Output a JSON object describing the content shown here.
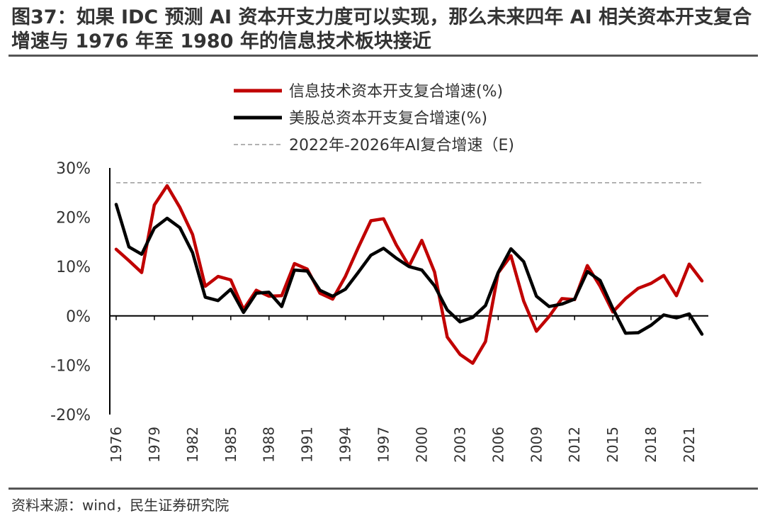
{
  "title": "图37：如果 IDC 预测 AI 资本开支力度可以实现，那么未来四年 AI 相关资本开支复合增速与 1976 年至 1980 年的信息技术板块接近",
  "source": "资料来源：wind，民生证券研究院",
  "colors": {
    "red": "#c00000",
    "black": "#000000",
    "dashed": "#999999"
  },
  "chart_data": {
    "type": "line",
    "title": "",
    "xlabel": "",
    "ylabel": "",
    "ylim": [
      -20,
      30
    ],
    "yticks": [
      -20,
      -10,
      0,
      10,
      20,
      30
    ],
    "ytick_labels": [
      "-20%",
      "-10%",
      "0%",
      "10%",
      "20%",
      "30%"
    ],
    "x": [
      1976,
      1977,
      1978,
      1979,
      1980,
      1981,
      1982,
      1983,
      1984,
      1985,
      1986,
      1987,
      1988,
      1989,
      1990,
      1991,
      1992,
      1993,
      1994,
      1995,
      1996,
      1997,
      1998,
      1999,
      2000,
      2001,
      2002,
      2003,
      2004,
      2005,
      2006,
      2007,
      2008,
      2009,
      2010,
      2011,
      2012,
      2013,
      2014,
      2015,
      2016,
      2017,
      2018,
      2019,
      2020,
      2021,
      2022
    ],
    "xtick_labels": [
      "1976",
      "1979",
      "1982",
      "1985",
      "1988",
      "1991",
      "1994",
      "1997",
      "2000",
      "2003",
      "2006",
      "2009",
      "2012",
      "2015",
      "2018",
      "2021"
    ],
    "series": [
      {
        "name": "信息技术资本开支复合增速(%)",
        "color": "#c00000",
        "style": "solid",
        "values": [
          13.5,
          11.2,
          8.8,
          22.5,
          26.4,
          22.0,
          16.5,
          6.0,
          8.0,
          7.3,
          1.3,
          5.2,
          4.0,
          4.1,
          10.6,
          9.5,
          4.6,
          3.4,
          8.0,
          13.8,
          19.3,
          19.7,
          14.4,
          10.1,
          15.3,
          8.9,
          -4.3,
          -7.8,
          -9.6,
          -5.2,
          8.7,
          12.2,
          3.0,
          -3.1,
          -0.1,
          3.5,
          3.3,
          10.2,
          6.0,
          0.8,
          3.5,
          5.6,
          6.6,
          8.2,
          4.1,
          10.5,
          7.1
        ]
      },
      {
        "name": "美股总资本开支复合增速(%)",
        "color": "#000000",
        "style": "solid",
        "values": [
          22.6,
          14.0,
          12.5,
          17.8,
          19.8,
          17.9,
          12.8,
          3.8,
          3.1,
          5.4,
          0.7,
          4.6,
          4.8,
          1.9,
          9.3,
          9.1,
          5.2,
          4.0,
          5.4,
          8.8,
          12.3,
          13.7,
          11.7,
          10.0,
          9.3,
          6.1,
          1.2,
          -1.2,
          -0.3,
          2.1,
          8.8,
          13.6,
          11.0,
          4.0,
          1.9,
          2.4,
          3.4,
          9.0,
          7.2,
          1.5,
          -3.5,
          -3.4,
          -1.9,
          0.2,
          -0.4,
          0.4,
          -3.7
        ]
      },
      {
        "name": "2022年-2026年AI复合增速（E)",
        "color": "#999999",
        "style": "dashed",
        "values": [
          27.0,
          27.0,
          27.0,
          27.0,
          27.0,
          27.0,
          27.0,
          27.0,
          27.0,
          27.0,
          27.0,
          27.0,
          27.0,
          27.0,
          27.0,
          27.0,
          27.0,
          27.0,
          27.0,
          27.0,
          27.0,
          27.0,
          27.0,
          27.0,
          27.0,
          27.0,
          27.0,
          27.0,
          27.0,
          27.0,
          27.0,
          27.0,
          27.0,
          27.0,
          27.0,
          27.0,
          27.0,
          27.0,
          27.0,
          27.0,
          27.0,
          27.0,
          27.0,
          27.0,
          27.0,
          27.0,
          27.0
        ]
      }
    ],
    "legend_position": "top"
  }
}
